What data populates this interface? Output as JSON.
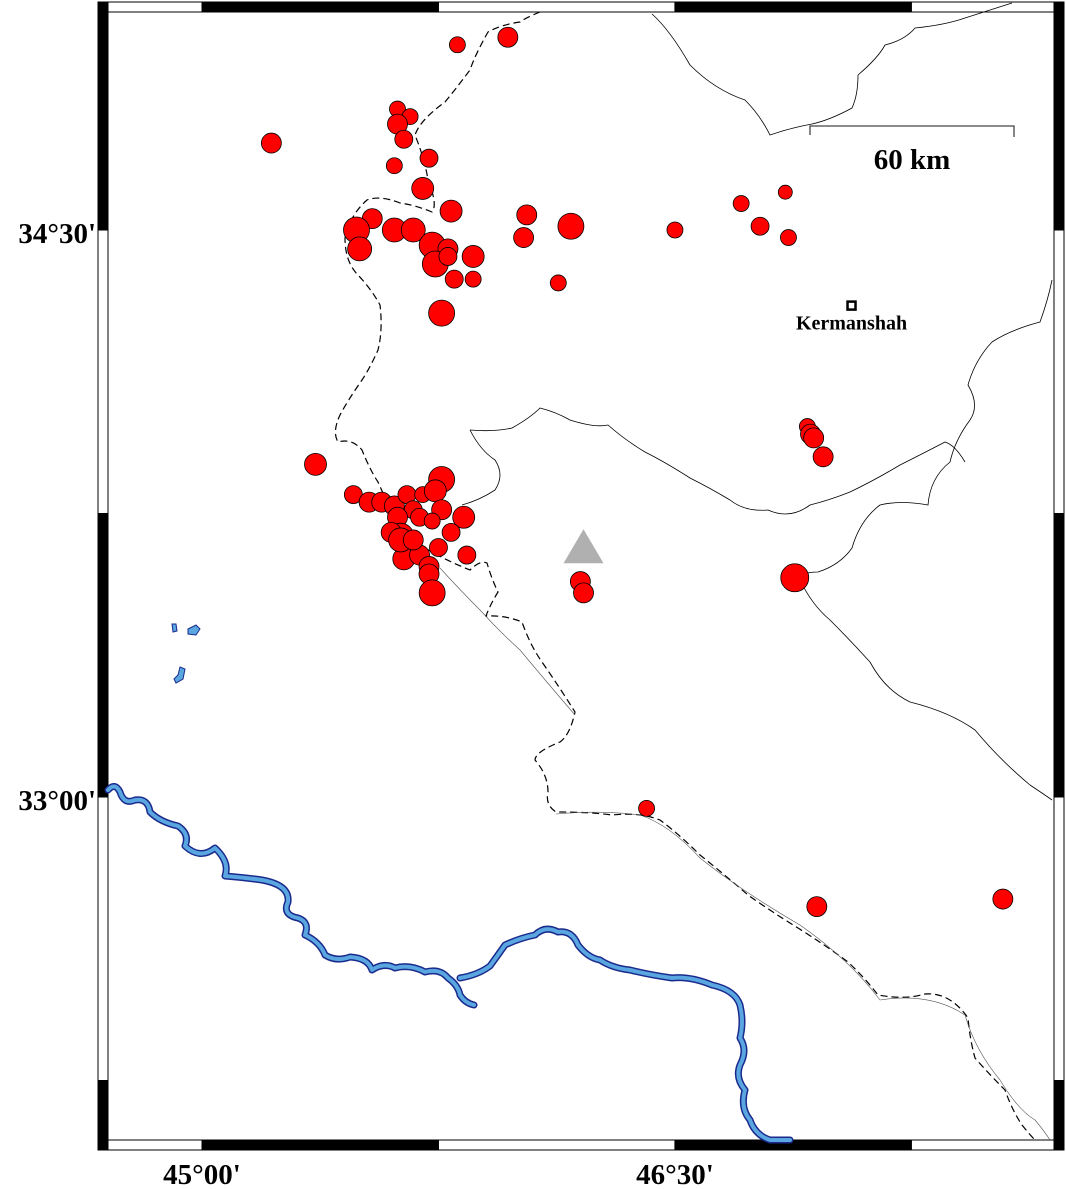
{
  "map": {
    "extent": {
      "lon": [
        44.67,
        47.73
      ],
      "lat": [
        31.98,
        35.02
      ]
    },
    "frame_style": "alternating black/white",
    "axis_labels": {
      "lon": [
        {
          "value": 45.0,
          "text": "45°00'"
        },
        {
          "value": 46.5,
          "text": "46°30'"
        }
      ],
      "lat": [
        {
          "value": 34.5,
          "text": "34°30'"
        },
        {
          "value": 33.0,
          "text": "33°00'"
        }
      ]
    },
    "scale_bar": {
      "label": "60 km",
      "length_km": 60
    },
    "city": {
      "name": "Kermanshah",
      "lon": 47.06,
      "lat": 34.3,
      "symbol": "square"
    },
    "station": {
      "symbol": "triangle",
      "lon": 46.21,
      "lat": 33.65,
      "color": "#b0b0b0"
    },
    "colors": {
      "event_fill": "#ff0000",
      "event_stroke": "#000000",
      "river_fill": "#5aa6e0",
      "river_stroke": "#1a2a8c",
      "border": "#000000",
      "province": "#000000"
    },
    "legend_note": "",
    "events": [
      {
        "lon": 45.81,
        "lat": 34.99,
        "mag": 3.8
      },
      {
        "lon": 45.97,
        "lat": 35.01,
        "mag": 4.2
      },
      {
        "lon": 45.22,
        "lat": 34.73,
        "mag": 4.2
      },
      {
        "lon": 45.62,
        "lat": 34.82,
        "mag": 3.8
      },
      {
        "lon": 45.66,
        "lat": 34.8,
        "mag": 3.8
      },
      {
        "lon": 45.62,
        "lat": 34.78,
        "mag": 4.2
      },
      {
        "lon": 45.64,
        "lat": 34.74,
        "mag": 4.0
      },
      {
        "lon": 45.72,
        "lat": 34.69,
        "mag": 4.0
      },
      {
        "lon": 45.61,
        "lat": 34.67,
        "mag": 3.8
      },
      {
        "lon": 45.7,
        "lat": 34.61,
        "mag": 4.4
      },
      {
        "lon": 45.79,
        "lat": 34.55,
        "mag": 4.4
      },
      {
        "lon": 46.03,
        "lat": 34.54,
        "mag": 4.2
      },
      {
        "lon": 46.17,
        "lat": 34.51,
        "mag": 4.8
      },
      {
        "lon": 46.5,
        "lat": 34.5,
        "mag": 3.8
      },
      {
        "lon": 46.71,
        "lat": 34.57,
        "mag": 3.8
      },
      {
        "lon": 46.77,
        "lat": 34.51,
        "mag": 4.0
      },
      {
        "lon": 46.85,
        "lat": 34.6,
        "mag": 3.6
      },
      {
        "lon": 46.86,
        "lat": 34.48,
        "mag": 3.8
      },
      {
        "lon": 45.54,
        "lat": 34.53,
        "mag": 4.2
      },
      {
        "lon": 45.49,
        "lat": 34.5,
        "mag": 4.8
      },
      {
        "lon": 45.5,
        "lat": 34.45,
        "mag": 4.6
      },
      {
        "lon": 45.61,
        "lat": 34.5,
        "mag": 4.6
      },
      {
        "lon": 45.67,
        "lat": 34.5,
        "mag": 4.6
      },
      {
        "lon": 45.73,
        "lat": 34.46,
        "mag": 4.8
      },
      {
        "lon": 45.78,
        "lat": 34.45,
        "mag": 4.2
      },
      {
        "lon": 45.86,
        "lat": 34.43,
        "mag": 4.4
      },
      {
        "lon": 45.74,
        "lat": 34.41,
        "mag": 4.8
      },
      {
        "lon": 45.78,
        "lat": 34.43,
        "mag": 4.0
      },
      {
        "lon": 45.8,
        "lat": 34.37,
        "mag": 4.0
      },
      {
        "lon": 45.86,
        "lat": 34.37,
        "mag": 3.8
      },
      {
        "lon": 46.02,
        "lat": 34.48,
        "mag": 4.2
      },
      {
        "lon": 46.13,
        "lat": 34.36,
        "mag": 3.8
      },
      {
        "lon": 45.76,
        "lat": 34.28,
        "mag": 4.8
      },
      {
        "lon": 45.36,
        "lat": 33.88,
        "mag": 4.4
      },
      {
        "lon": 46.92,
        "lat": 33.98,
        "mag": 3.8
      },
      {
        "lon": 46.93,
        "lat": 33.96,
        "mag": 4.2
      },
      {
        "lon": 46.94,
        "lat": 33.95,
        "mag": 4.2
      },
      {
        "lon": 46.97,
        "lat": 33.9,
        "mag": 4.2
      },
      {
        "lon": 46.88,
        "lat": 33.58,
        "mag": 5.0
      },
      {
        "lon": 46.2,
        "lat": 33.57,
        "mag": 4.2
      },
      {
        "lon": 46.21,
        "lat": 33.54,
        "mag": 4.2
      },
      {
        "lon": 46.41,
        "lat": 32.97,
        "mag": 3.8
      },
      {
        "lon": 46.95,
        "lat": 32.71,
        "mag": 4.2
      },
      {
        "lon": 47.54,
        "lat": 32.73,
        "mag": 4.2
      },
      {
        "lon": 45.48,
        "lat": 33.8,
        "mag": 4.0
      },
      {
        "lon": 45.53,
        "lat": 33.78,
        "mag": 4.2
      },
      {
        "lon": 45.57,
        "lat": 33.78,
        "mag": 4.2
      },
      {
        "lon": 45.61,
        "lat": 33.77,
        "mag": 4.2
      },
      {
        "lon": 45.65,
        "lat": 33.8,
        "mag": 4.0
      },
      {
        "lon": 45.7,
        "lat": 33.8,
        "mag": 3.8
      },
      {
        "lon": 45.76,
        "lat": 33.84,
        "mag": 4.8
      },
      {
        "lon": 45.74,
        "lat": 33.81,
        "mag": 4.4
      },
      {
        "lon": 45.67,
        "lat": 33.76,
        "mag": 4.0
      },
      {
        "lon": 45.62,
        "lat": 33.74,
        "mag": 4.2
      },
      {
        "lon": 45.76,
        "lat": 33.76,
        "mag": 4.2
      },
      {
        "lon": 45.83,
        "lat": 33.74,
        "mag": 4.4
      },
      {
        "lon": 45.69,
        "lat": 33.74,
        "mag": 4.0
      },
      {
        "lon": 45.73,
        "lat": 33.73,
        "mag": 3.8
      },
      {
        "lon": 45.63,
        "lat": 33.69,
        "mag": 4.8
      },
      {
        "lon": 45.6,
        "lat": 33.7,
        "mag": 4.2
      },
      {
        "lon": 45.64,
        "lat": 33.63,
        "mag": 4.4
      },
      {
        "lon": 45.69,
        "lat": 33.64,
        "mag": 4.2
      },
      {
        "lon": 45.75,
        "lat": 33.66,
        "mag": 4.0
      },
      {
        "lon": 45.79,
        "lat": 33.7,
        "mag": 4.0
      },
      {
        "lon": 45.84,
        "lat": 33.64,
        "mag": 4.0
      },
      {
        "lon": 45.72,
        "lat": 33.61,
        "mag": 4.2
      },
      {
        "lon": 45.72,
        "lat": 33.59,
        "mag": 4.2
      },
      {
        "lon": 45.73,
        "lat": 33.54,
        "mag": 4.8
      },
      {
        "lon": 45.63,
        "lat": 33.68,
        "mag": 4.6
      },
      {
        "lon": 45.67,
        "lat": 33.68,
        "mag": 4.2
      }
    ]
  }
}
